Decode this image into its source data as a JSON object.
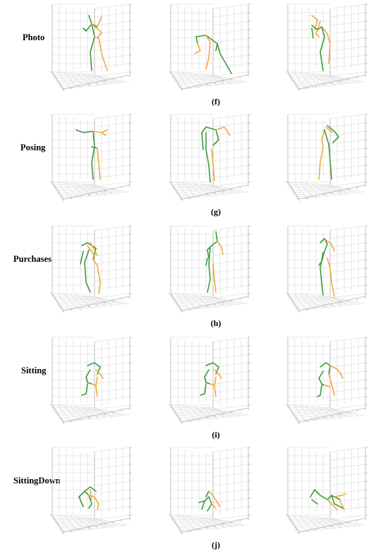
{
  "figure": {
    "rows": [
      {
        "label": "Photo",
        "caption": "(f)",
        "poses": [
          "stand-arm-up",
          "bend-forward",
          "stand-arm-raised"
        ]
      },
      {
        "label": "Posing",
        "caption": "(g)",
        "poses": [
          "t-pose",
          "stand-arm-out",
          "stand-arm-out-b"
        ]
      },
      {
        "label": "Purchases",
        "caption": "(h)",
        "poses": [
          "lean-forward",
          "stand-hand-face",
          "stand-hand-face-b"
        ]
      },
      {
        "label": "Sitting",
        "caption": "(i)",
        "poses": [
          "sit",
          "sit",
          "sit-arm-out"
        ]
      },
      {
        "label": "SittingDown",
        "caption": "(j)",
        "poses": [
          "crouch",
          "sit-low",
          "lying"
        ]
      }
    ],
    "colors": {
      "left_limb": "#3c9a3c",
      "right_limb": "#f2a93b",
      "grid": "#d6d6d6",
      "box_edge": "#b8b8b8"
    }
  }
}
